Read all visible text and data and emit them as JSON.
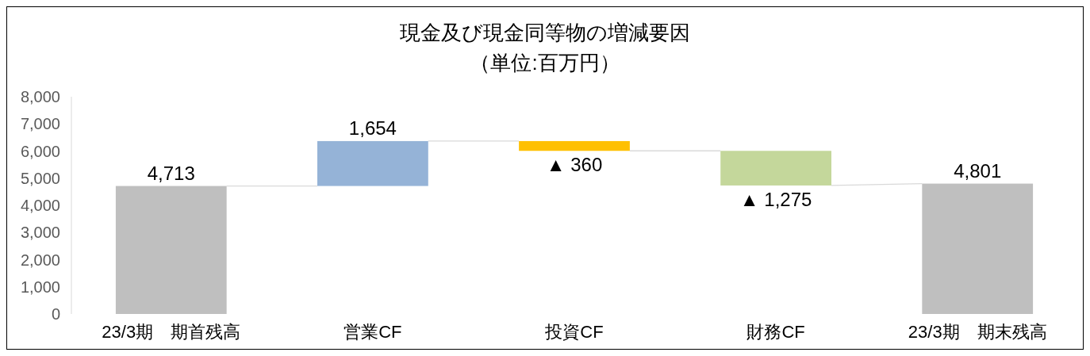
{
  "chart_data": {
    "type": "bar",
    "title": "現金及び現金同等物の増減要因",
    "subtitle": "（単位:百万円）",
    "categories": [
      "23/3期　期首残高",
      "営業CF",
      "投資CF",
      "財務CF",
      "23/3期　期末残高"
    ],
    "values": [
      4713,
      1654,
      -360,
      -1275,
      4801
    ],
    "base": [
      0,
      4713,
      6367,
      6007,
      0
    ],
    "colors": [
      "#bfbfbf",
      "#95b3d7",
      "#ffc000",
      "#c4d79b",
      "#bfbfbf"
    ],
    "value_labels": [
      "4,713",
      "1,654",
      "▲ 360",
      "▲ 1,275",
      "4,801"
    ],
    "ylim": [
      0,
      8000
    ],
    "yticks": [
      {
        "value": 0,
        "label": "0"
      },
      {
        "value": 1000,
        "label": "1,000"
      },
      {
        "value": 2000,
        "label": "2,000"
      },
      {
        "value": 3000,
        "label": "3,000"
      },
      {
        "value": 4000,
        "label": "4,000"
      },
      {
        "value": 5000,
        "label": "5,000"
      },
      {
        "value": 6000,
        "label": "6,000"
      },
      {
        "value": 7000,
        "label": "7,000"
      },
      {
        "value": 8000,
        "label": "8,000"
      }
    ],
    "grid": false
  }
}
